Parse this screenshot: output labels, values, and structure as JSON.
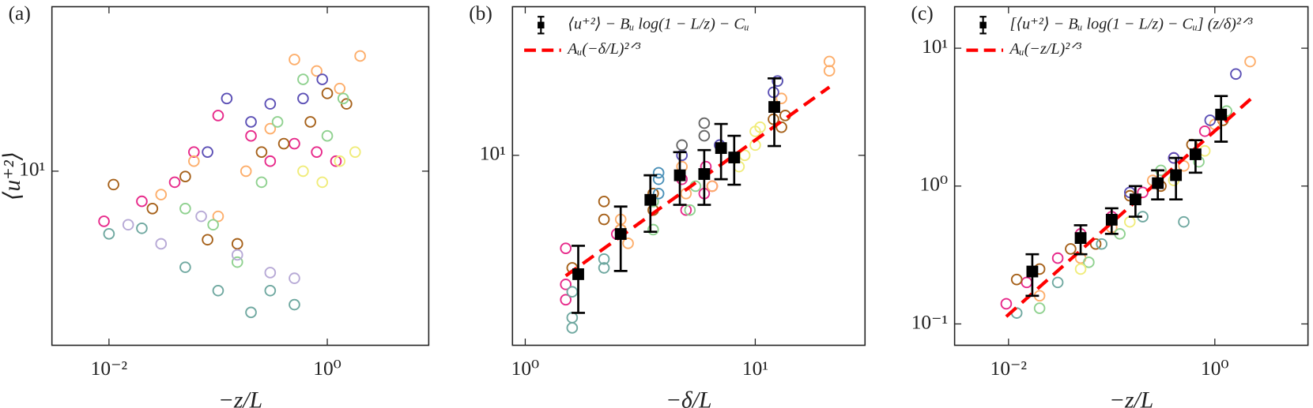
{
  "chart_data": [
    {
      "type": "scatter",
      "panel_label": "(a)",
      "xlabel": "−z/L",
      "ylabel": "⟨u⁺²⟩",
      "xscale": "log",
      "yscale": "log",
      "xlim": [
        0.003,
        8.5
      ],
      "ylim": [
        1.9,
        48
      ],
      "xticks": [
        {
          "value": 0.01,
          "label": "10⁻²"
        },
        {
          "value": 1,
          "label": "10⁰"
        }
      ],
      "yticks": [
        {
          "value": 10,
          "label": "10¹"
        }
      ],
      "series": [
        {
          "color": "#e7298a",
          "x": [
            0.009,
            0.02,
            0.04,
            0.06,
            0.1,
            0.2,
            0.3,
            0.5,
            0.8,
            1.2
          ],
          "values": [
            6.2,
            7.5,
            9,
            12,
            17,
            14,
            11,
            13,
            12,
            11
          ]
        },
        {
          "color": "#a6611a",
          "x": [
            0.011,
            0.025,
            0.05,
            0.08,
            0.15,
            0.25,
            0.4,
            0.7,
            1,
            1.5
          ],
          "values": [
            8.8,
            7,
            9.5,
            5.2,
            5,
            12,
            13,
            16,
            21,
            19
          ]
        },
        {
          "color": "#fdae6b",
          "x": [
            0.03,
            0.06,
            0.1,
            0.18,
            0.3,
            0.5,
            0.8,
            1.3,
            2
          ],
          "values": [
            8,
            11,
            6.5,
            10,
            15,
            29,
            26,
            22,
            30
          ]
        },
        {
          "color": "#8fd18f",
          "x": [
            0.05,
            0.09,
            0.15,
            0.25,
            0.35,
            0.6,
            1,
            1.4
          ],
          "values": [
            7,
            6,
            4.2,
            9,
            16,
            24,
            14,
            20
          ]
        },
        {
          "color": "#6fa8a0",
          "x": [
            0.01,
            0.02,
            0.05,
            0.1,
            0.2,
            0.3,
            0.5
          ],
          "values": [
            5.5,
            5.8,
            4,
            3.2,
            2.6,
            3.2,
            2.8
          ]
        },
        {
          "color": "#5b4fb5",
          "x": [
            0.08,
            0.12,
            0.2,
            0.3,
            0.6,
            0.9
          ],
          "values": [
            12,
            20,
            16,
            19,
            20,
            24
          ]
        },
        {
          "color": "#b7a9d6",
          "x": [
            0.015,
            0.03,
            0.07,
            0.15,
            0.3,
            0.5
          ],
          "values": [
            6,
            5,
            6.5,
            4.5,
            3.8,
            3.6
          ]
        },
        {
          "color": "#f0ec7a",
          "x": [
            0.6,
            0.9,
            1.3,
            1.8
          ],
          "values": [
            10,
            9,
            11,
            12
          ]
        }
      ]
    },
    {
      "type": "scatter",
      "panel_label": "(b)",
      "xlabel": "−δ/L",
      "xscale": "log",
      "yscale": "log",
      "xlim": [
        0.88,
        30
      ],
      "ylim": [
        1.7,
        40
      ],
      "xticks": [
        {
          "value": 1,
          "label": "10⁰"
        },
        {
          "value": 10,
          "label": "10¹"
        }
      ],
      "yticks": [
        {
          "value": 10,
          "label": "10¹"
        }
      ],
      "legend": "upper left",
      "series": [
        {
          "color": "#e7298a",
          "x": [
            1.5,
            1.5,
            1.5,
            2.5,
            4.8,
            5,
            6,
            6.1,
            6.5
          ],
          "values": [
            3,
            2.6,
            4.2,
            4.8,
            8,
            6,
            7,
            9,
            7.5
          ]
        },
        {
          "color": "#6fa8a0",
          "x": [
            1.6,
            1.6,
            1.6,
            2.2,
            2.2,
            3.6
          ],
          "values": [
            2,
            2.2,
            2.8,
            3.5,
            3.8,
            6.5
          ]
        },
        {
          "color": "#a6611a",
          "x": [
            1.6,
            2.2,
            2.2,
            2.6,
            3.6,
            3.6,
            12,
            13,
            13.5
          ],
          "values": [
            3.5,
            5.5,
            6.5,
            5,
            6,
            7,
            14,
            13,
            14.5
          ]
        },
        {
          "color": "#fdae6b",
          "x": [
            2.6,
            2.6,
            2.8,
            4.8,
            5,
            6.5,
            13,
            21,
            21
          ],
          "values": [
            5,
            5.5,
            4.4,
            9,
            7,
            7.5,
            17,
            22,
            24
          ]
        },
        {
          "color": "#8fd18f",
          "x": [
            3.6,
            3.6,
            5.2,
            5.5,
            12.5
          ],
          "values": [
            6.5,
            5,
            6,
            7.5,
            20
          ]
        },
        {
          "color": "#4a90b8",
          "x": [
            3.8,
            3.8,
            3.8
          ],
          "values": [
            7,
            8,
            8.5
          ]
        },
        {
          "color": "#5b4fb5",
          "x": [
            4.8,
            7,
            12,
            12.5
          ],
          "values": [
            10,
            11,
            18,
            20
          ]
        },
        {
          "color": "#f0ec7a",
          "x": [
            8.5,
            9,
            10,
            10,
            10.5
          ],
          "values": [
            9,
            10,
            11,
            12.5,
            13
          ]
        },
        {
          "color": "#666666",
          "x": [
            4.8,
            6,
            6
          ],
          "values": [
            11,
            12,
            13.5
          ]
        },
        {
          "type": "errorbar",
          "name": "⟨u⁺²⟩ − Bᵤ log(1 − L/z) − Cᵤ",
          "color": "#000000",
          "x": [
            1.7,
            2.6,
            3.5,
            4.7,
            6,
            7.1,
            8.1,
            12.1
          ],
          "values": [
            3.3,
            4.8,
            6.6,
            8.3,
            8.4,
            10.7,
            9.8,
            15.7
          ],
          "errors": [
            1,
            1.4,
            1.7,
            2,
            2.1,
            2.7,
            2.2,
            4.8
          ]
        },
        {
          "type": "line",
          "name": "Aᵤ(−δ/L)²ᐟ³",
          "color": "#ff0000",
          "x": [
            1.5,
            21
          ],
          "values": [
            3.25,
            18.9
          ]
        }
      ]
    },
    {
      "type": "scatter",
      "panel_label": "(c)",
      "xlabel": "−z/L",
      "xscale": "log",
      "yscale": "log",
      "xlim": [
        0.003,
        8
      ],
      "ylim": [
        0.07,
        20
      ],
      "xticks": [
        {
          "value": 0.01,
          "label": "10⁻²"
        },
        {
          "value": 1,
          "label": "10⁰"
        }
      ],
      "yticks": [
        {
          "value": 0.1,
          "label": "10⁻¹"
        },
        {
          "value": 1,
          "label": "10⁰"
        },
        {
          "value": 10,
          "label": "10¹"
        }
      ],
      "legend": "upper left",
      "series": [
        {
          "color": "#e7298a",
          "x": [
            0.0095,
            0.015,
            0.03,
            0.05,
            0.1,
            0.2,
            0.4,
            0.8
          ],
          "values": [
            0.14,
            0.2,
            0.3,
            0.45,
            0.6,
            0.9,
            1.6,
            2.5
          ]
        },
        {
          "color": "#a6611a",
          "x": [
            0.012,
            0.02,
            0.04,
            0.07,
            0.15,
            0.3,
            0.6,
            1.2
          ],
          "values": [
            0.21,
            0.25,
            0.35,
            0.38,
            0.85,
            1.0,
            2.0,
            3.0
          ]
        },
        {
          "color": "#fdae6b",
          "x": [
            0.02,
            0.05,
            0.1,
            0.25,
            0.5,
            1,
            2.2
          ],
          "values": [
            0.16,
            0.3,
            0.5,
            1.1,
            1.4,
            2.8,
            8
          ]
        },
        {
          "color": "#6fa8a0",
          "x": [
            0.012,
            0.03,
            0.08,
            0.2,
            0.5
          ],
          "values": [
            0.12,
            0.2,
            0.38,
            0.6,
            0.55
          ]
        },
        {
          "color": "#8fd18f",
          "x": [
            0.02,
            0.06,
            0.12,
            0.3,
            0.7,
            1.3
          ],
          "values": [
            0.13,
            0.28,
            0.45,
            1.3,
            1.5,
            3.5
          ]
        },
        {
          "color": "#5b4fb5",
          "x": [
            0.15,
            0.4,
            0.9,
            1.6
          ],
          "values": [
            0.9,
            1.6,
            3,
            6.5
          ]
        },
        {
          "color": "#f0ec7a",
          "x": [
            0.05,
            0.15,
            0.4,
            0.8
          ],
          "values": [
            0.25,
            0.55,
            1.1,
            1.8
          ]
        },
        {
          "type": "errorbar",
          "name": "[⟨u⁺²⟩ − Bᵤ log(1 − L/z) − Cᵤ] (z/δ)²ᐟ³",
          "color": "#000000",
          "x": [
            0.017,
            0.05,
            0.1,
            0.17,
            0.28,
            0.42,
            0.65,
            1.15
          ],
          "values": [
            0.24,
            0.42,
            0.57,
            0.8,
            1.05,
            1.2,
            1.7,
            3.3
          ],
          "errors": [
            0.08,
            0.1,
            0.12,
            0.2,
            0.25,
            0.4,
            0.45,
            1.2
          ]
        },
        {
          "type": "line",
          "name": "Aᵤ(−z/L)²ᐟ³",
          "color": "#ff0000",
          "x": [
            0.0095,
            2.4
          ],
          "values": [
            0.113,
            4.5
          ]
        }
      ]
    }
  ]
}
